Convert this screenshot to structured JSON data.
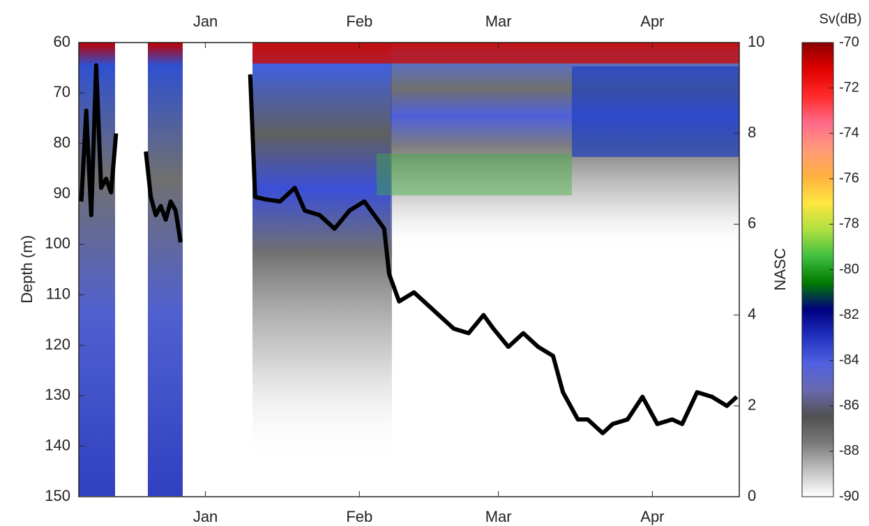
{
  "chart_data": {
    "type": "line",
    "ylabel": "Depth (m)",
    "y2label": "NASC",
    "ylim": [
      150,
      60
    ],
    "yticks": [
      60,
      70,
      80,
      90,
      100,
      110,
      120,
      130,
      140,
      150
    ],
    "y2lim": [
      0,
      10
    ],
    "y2ticks": [
      0,
      2,
      4,
      6,
      8,
      10
    ],
    "xlim": [
      -25.5,
      107.5
    ],
    "xticks": [
      {
        "value": 0,
        "label": "Jan"
      },
      {
        "value": 31,
        "label": "Feb"
      },
      {
        "value": 59,
        "label": "Mar"
      },
      {
        "value": 90,
        "label": "Apr"
      }
    ],
    "x": [
      -25,
      -24,
      -23,
      -22,
      -21,
      -20,
      -19,
      -18,
      null,
      -12,
      -11,
      -10,
      -9,
      -8,
      -7,
      -6,
      -5,
      null,
      9,
      10,
      12,
      15,
      18,
      20,
      23,
      26,
      29,
      32,
      34,
      36,
      37,
      39,
      42,
      44,
      47,
      50,
      53,
      56,
      58,
      61,
      64,
      67,
      70,
      72,
      75,
      77,
      80,
      82,
      85,
      88,
      91,
      94,
      96,
      99,
      102,
      105,
      107
    ],
    "series": [
      {
        "color": "#000000",
        "axis": "y2",
        "values": [
          6.5,
          8.5,
          6.2,
          9.5,
          6.8,
          7.0,
          6.7,
          8.0,
          null,
          7.6,
          6.6,
          6.2,
          6.4,
          6.1,
          6.5,
          6.3,
          5.6,
          null,
          9.3,
          6.6,
          6.55,
          6.5,
          6.8,
          6.3,
          6.2,
          5.9,
          6.3,
          6.5,
          6.2,
          5.9,
          4.9,
          4.3,
          4.5,
          4.3,
          4.0,
          3.7,
          3.6,
          4.0,
          3.7,
          3.3,
          3.6,
          3.3,
          3.1,
          2.3,
          1.7,
          1.7,
          1.4,
          1.6,
          1.7,
          2.2,
          1.6,
          1.7,
          1.6,
          2.3,
          2.2,
          2.0,
          2.2
        ]
      }
    ],
    "colorbar": {
      "title": "Sv(dB)",
      "lim": [
        -90,
        -70
      ],
      "ticks": [
        -70,
        -72,
        -74,
        -76,
        -78,
        -80,
        -82,
        -84,
        -86,
        -88,
        -90
      ],
      "colors": [
        "#8b0000",
        "#e00000",
        "#ff2a2a",
        "#ff6a8a",
        "#ff9a7a",
        "#ffb040",
        "#ffe640",
        "#b0e040",
        "#40c040",
        "#007a00",
        "#000080",
        "#2030c0",
        "#5060e0",
        "#6a6ab0",
        "#505050",
        "#7a7a7a",
        "#c0c0c0",
        "#ffffff"
      ]
    }
  }
}
